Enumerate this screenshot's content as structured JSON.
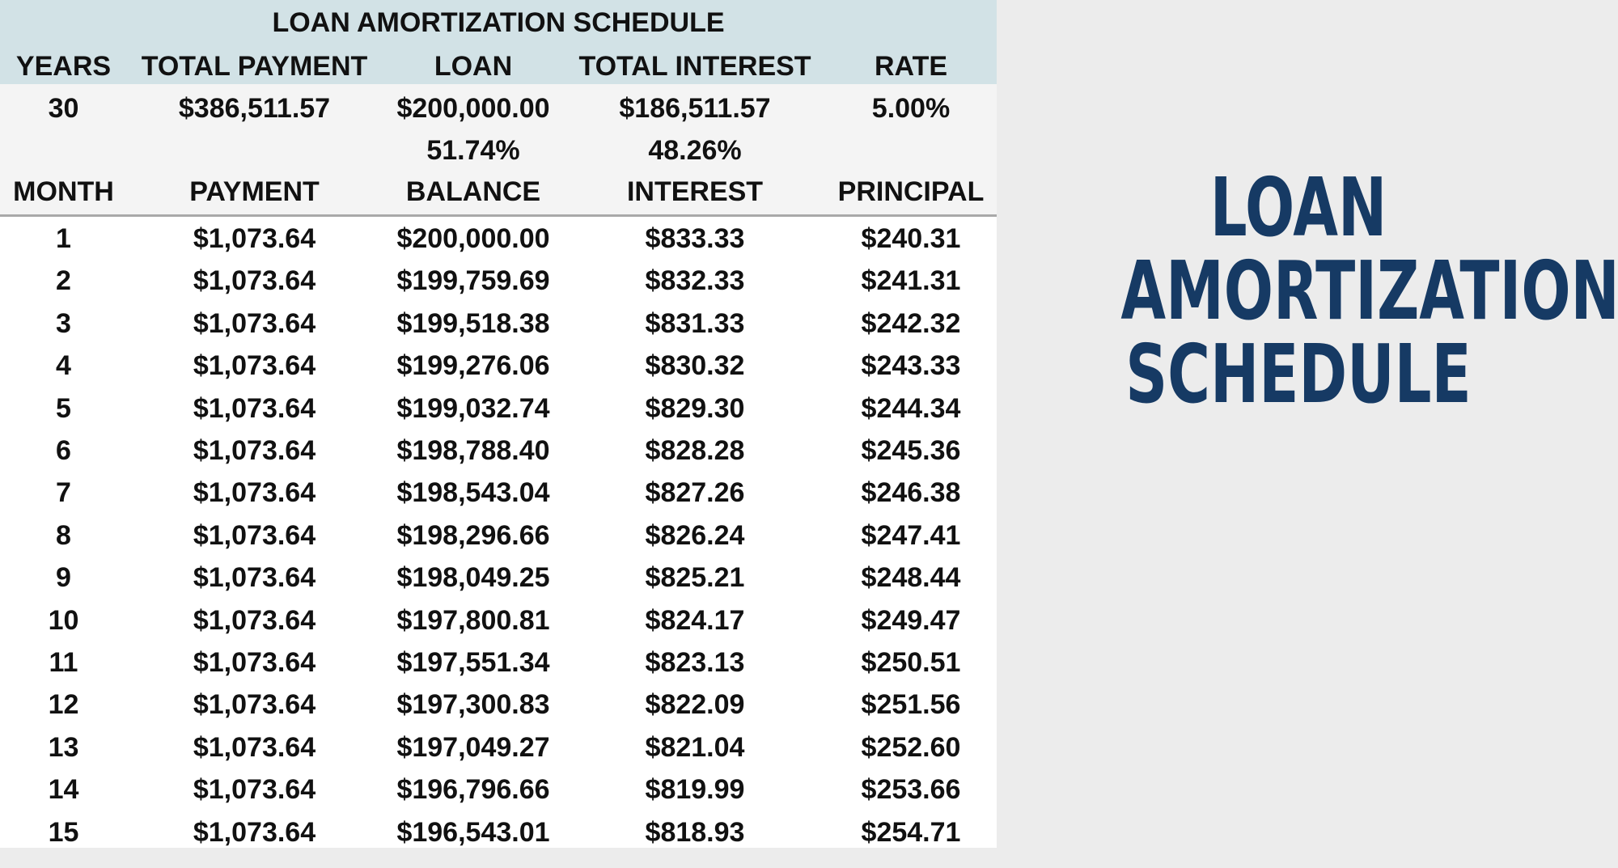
{
  "sheet": {
    "title": "LOAN AMORTIZATION SCHEDULE",
    "summary_headers": [
      "YEARS",
      "TOTAL PAYMENT",
      "LOAN",
      "TOTAL INTEREST",
      "RATE"
    ],
    "summary_values": [
      "30",
      "$386,511.57",
      "$200,000.00",
      "$186,511.57",
      "5.00%"
    ],
    "percentages": {
      "loan": "51.74%",
      "interest": "48.26%"
    },
    "schedule_headers": [
      "MONTH",
      "PAYMENT",
      "BALANCE",
      "INTEREST",
      "PRINCIPAL"
    ],
    "rows": [
      [
        "1",
        "$1,073.64",
        "$200,000.00",
        "$833.33",
        "$240.31"
      ],
      [
        "2",
        "$1,073.64",
        "$199,759.69",
        "$832.33",
        "$241.31"
      ],
      [
        "3",
        "$1,073.64",
        "$199,518.38",
        "$831.33",
        "$242.32"
      ],
      [
        "4",
        "$1,073.64",
        "$199,276.06",
        "$830.32",
        "$243.33"
      ],
      [
        "5",
        "$1,073.64",
        "$199,032.74",
        "$829.30",
        "$244.34"
      ],
      [
        "6",
        "$1,073.64",
        "$198,788.40",
        "$828.28",
        "$245.36"
      ],
      [
        "7",
        "$1,073.64",
        "$198,543.04",
        "$827.26",
        "$246.38"
      ],
      [
        "8",
        "$1,073.64",
        "$198,296.66",
        "$826.24",
        "$247.41"
      ],
      [
        "9",
        "$1,073.64",
        "$198,049.25",
        "$825.21",
        "$248.44"
      ],
      [
        "10",
        "$1,073.64",
        "$197,800.81",
        "$824.17",
        "$249.47"
      ],
      [
        "11",
        "$1,073.64",
        "$197,551.34",
        "$823.13",
        "$250.51"
      ],
      [
        "12",
        "$1,073.64",
        "$197,300.83",
        "$822.09",
        "$251.56"
      ],
      [
        "13",
        "$1,073.64",
        "$197,049.27",
        "$821.04",
        "$252.60"
      ],
      [
        "14",
        "$1,073.64",
        "$196,796.66",
        "$819.99",
        "$253.66"
      ],
      [
        "15",
        "$1,073.64",
        "$196,543.01",
        "$818.93",
        "$254.71"
      ]
    ]
  },
  "heading": {
    "lines": [
      "LOAN",
      "AMORTIZATION",
      "SCHEDULE"
    ]
  },
  "colors": {
    "header_band": "#d2e2e6",
    "summary_band": "#f4f4f4",
    "heading_text": "#163a64",
    "background": "#ececec"
  }
}
